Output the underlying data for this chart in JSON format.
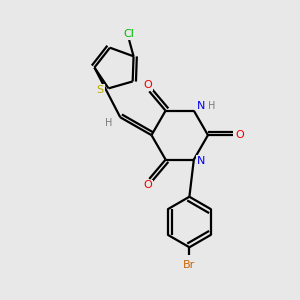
{
  "bg_color": "#e8e8e8",
  "bond_color": "#000000",
  "atom_colors": {
    "C": "#000000",
    "H": "#7a7a7a",
    "N": "#0000ee",
    "O": "#ee0000",
    "S": "#bbaa00",
    "Cl": "#00bb00",
    "Br": "#cc6600"
  }
}
